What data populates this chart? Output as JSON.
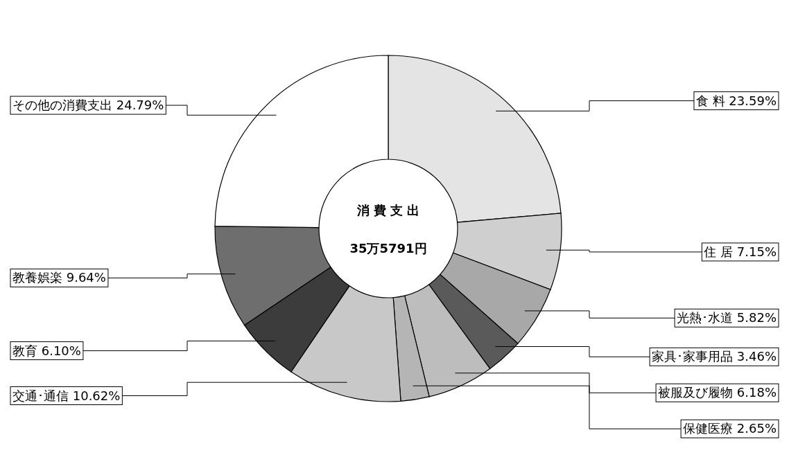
{
  "chart_data": {
    "type": "donut",
    "title": "消 費 支 出",
    "subtitle": "35万5791円",
    "categories": [
      "食 料 23.59%",
      "住 居 7.15%",
      "光熱･水道 5.82%",
      "家具･家事用品 3.46%",
      "被服及び履物 6.18%",
      "保健医療 2.65%",
      "交通･通信 10.62%",
      "教育 6.10%",
      "教養娯楽 9.64%",
      "その他の消費支出 24.79%"
    ],
    "values": [
      23.59,
      7.15,
      5.82,
      3.46,
      6.18,
      2.65,
      10.62,
      6.1,
      9.64,
      24.79
    ],
    "colors": [
      "#e4e4e4",
      "#cfcfcf",
      "#a8a8a8",
      "#5a5a5a",
      "#bdbdbd",
      "#b5b5b5",
      "#c8c8c8",
      "#3c3c3c",
      "#6e6e6e",
      "#ffffff"
    ]
  }
}
